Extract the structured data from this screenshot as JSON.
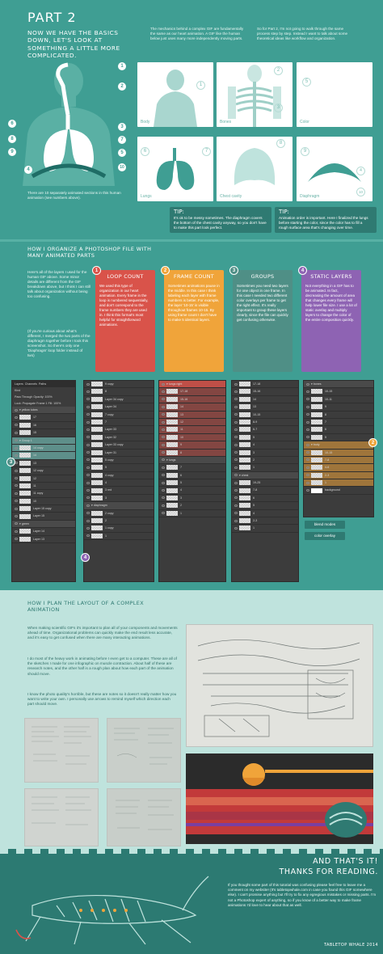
{
  "part": {
    "title": "PART 2"
  },
  "intro": {
    "heading": "NOW WE HAVE THE BASICS DOWN, LET'S LOOK AT SOMETHING A LITTLE MORE COMPLICATED.",
    "col1": "The mechanics behind a complex GIF are fundamentally the same as our heart animation. A GIF like the human below just uses many more independently moving parts.",
    "col2": "So for Part 2, I'm not going to walk through the same process step by step. Instead I want to talk about some theoretical ideas like workflow and organization."
  },
  "body_figure": {
    "numbers_left": [
      "6",
      "8",
      "9",
      "4"
    ],
    "numbers_right": [
      "1",
      "2",
      "3",
      "7",
      "5",
      "10"
    ],
    "caption": "There are 10 separately animated sections in this human animation (see numbers above)."
  },
  "panels": [
    {
      "num": "1",
      "label": "Body"
    },
    {
      "num": "2",
      "label": "Bones"
    },
    {
      "num": "5",
      "label": "Color"
    },
    {
      "num": "6",
      "label": "Lungs"
    },
    {
      "num": "8",
      "label": "Chest cavity"
    },
    {
      "num": "9",
      "label": "Diaphragm"
    }
  ],
  "panel_extra_nums": [
    "3",
    "7",
    "4",
    "10"
  ],
  "tips": [
    {
      "label": "TIP:",
      "text": "It's ok to be messy sometimes. The diaphragm covers the bottom of the chest cavity anyway, so you don't have to make this part look perfect."
    },
    {
      "label": "TIP:",
      "text": "Animation order is important. Here I finalized the lungs before starting the color, since the color has to fill a rough surface area that's changing over time."
    }
  ],
  "organize": {
    "heading": "HOW I ORGANIZE A PHOTOSHOP FILE WITH MANY ANIMATED PARTS",
    "intro": "Here's all of the layers I used for the human GIF above. Some minor details are different from the GIF breakdown above, but I think I can still talk about organization without being too confusing.",
    "intro2": "(If you're curious about what's different, I merged the two parts of the diaphragm together before I took this screenshot. So there's only one 'Diaphragm' loop folder instead of two)"
  },
  "columns": [
    {
      "num": "1",
      "title": "LOOP COUNT",
      "color": "#d9534a",
      "text": "We used this type of organization in our heart animation. Every frame in the loop is numbered sequentially, and don't correspond to the frame numbers they are used in. I think this format's most helpful for straightforward animations."
    },
    {
      "num": "2",
      "title": "FRAME COUNT",
      "color": "#f0a43a",
      "text": "Sometimes animations pause in the middle. In this case I think labeling each layer with frame numbers is better. For example, the layer '10-15' is visible throughout frames 10-15. By using frame count I don't have to make 5 identical layers."
    },
    {
      "num": "3",
      "title": "GROUPS",
      "color": "#4f8f86",
      "text": "Sometimes you need two layers for one object in one frame. In this case I needed two different color overlays per frame to get the right effect. It's really important to group these layers clearly, since the file can quickly get confusing otherwise."
    },
    {
      "num": "4",
      "title": "STATIC LAYERS",
      "color": "#8e63b3",
      "text": "Not everything in a GIF has to be animated. In fact, decreasing the amount of area that changes every frame will help lower file size. I use a lot of static overlay and multiply layers to change the color of the entire composition quickly."
    }
  ],
  "ps_panels": {
    "header_tabs": [
      "Layers",
      "Channels",
      "Paths"
    ],
    "kind": "Kind",
    "opacity_label": "Opacity:",
    "opacity_value": "100%",
    "fill_label": "Fill:",
    "fill_value": "100%",
    "blend": "Pass Through",
    "lock_label": "Lock:",
    "propagate": "Propagate Frame 1",
    "p1_group": "yellow tubes",
    "p1_layers": [
      "17",
      "16",
      "15",
      "14",
      "14 copy",
      "13",
      "12 copy",
      "12",
      "11",
      "11 copy",
      "10",
      "Layer 15 copy",
      "Layer 15",
      "Layer 14",
      "Layer 13",
      "tubes"
    ],
    "p1_sub_groups": [
      "Group 1",
      "green"
    ],
    "p1_static": [
      "color overlay",
      "person",
      "tubes"
    ],
    "p2_layers": [
      "9 copy",
      "8",
      "Layer 34 copy",
      "Layer 34",
      "7 copy",
      "7",
      "Layer 33",
      "Layer 32",
      "Layer 33 copy",
      "Layer 31",
      "5 copy",
      "5",
      "4 copy",
      "4",
      "3 red",
      "3",
      "2 copy",
      "2",
      "1 copy",
      "1"
    ],
    "p2_sub": [
      "diaphragm"
    ],
    "p3_group": "lungs right",
    "p3_layers": [
      "17-18",
      "15-16",
      "14",
      "13",
      "12",
      "11",
      "10",
      "9",
      "8",
      "7",
      "6",
      "5",
      "4",
      "3",
      "2",
      "1"
    ],
    "p3_sub": [
      "lungs"
    ],
    "p4_layers": [
      "17-18",
      "15-16",
      "14",
      "13",
      "10-15",
      "8-9",
      "6-7",
      "5",
      "4",
      "3",
      "2",
      "1",
      "19-25",
      "7-8",
      "6",
      "5",
      "4",
      "2-3",
      "1"
    ],
    "p4_sub": [
      "chest"
    ],
    "p5_group": "bones",
    "p5_layers": [
      "10-15",
      "10-11",
      "9",
      "8",
      "7",
      "6",
      "5",
      "4",
      "3",
      "2",
      "1",
      "10-15",
      "7-8",
      "4-6",
      "2-3",
      "1"
    ],
    "p5_sub": [
      "body"
    ],
    "p5_bottom": "background",
    "static_tags": [
      "blend modes",
      "color overlay"
    ]
  },
  "badges_over": [
    "3",
    "4",
    "2"
  ],
  "plan": {
    "heading": "HOW I PLAN THE LAYOUT OF A COMPLEX ANIMATION",
    "p1": "When making scientific GIFs it's important to plan all of your components and movements ahead of time. Organizational problems can quickly make the end result less accurate, and it's easy to get confused when there are many interacting animations.",
    "p2": "I do most of the heavy work in animating before I even get to a computer. These are all of the sketches I made for one infographic on muscle contraction. About half of these are research notes, and the other half is a rough plan about how each part of the animation should move.",
    "p3": "I know the photo quality's horrible, but these are notes so it doesn't really matter how you want to write your own. I personally use arrows to remind myself which direction each part should move."
  },
  "ending": {
    "title1": "AND THAT'S IT!",
    "title2": "THANKS FOR READING.",
    "text": "If you thought some part of this tutorial was confusing please feel free to leave me a comment on my website! (It's tabletopwhale.com in case you found this GIF somewhere else). I can't promise anything but I'll try to fix any egregious mistakes or missing parts. I'm not a Photoshop expert of anything, so if you know of a better way to make frame animations I'd love to hear about that as well.",
    "credit": "TABLETOP WHALE 2014"
  }
}
